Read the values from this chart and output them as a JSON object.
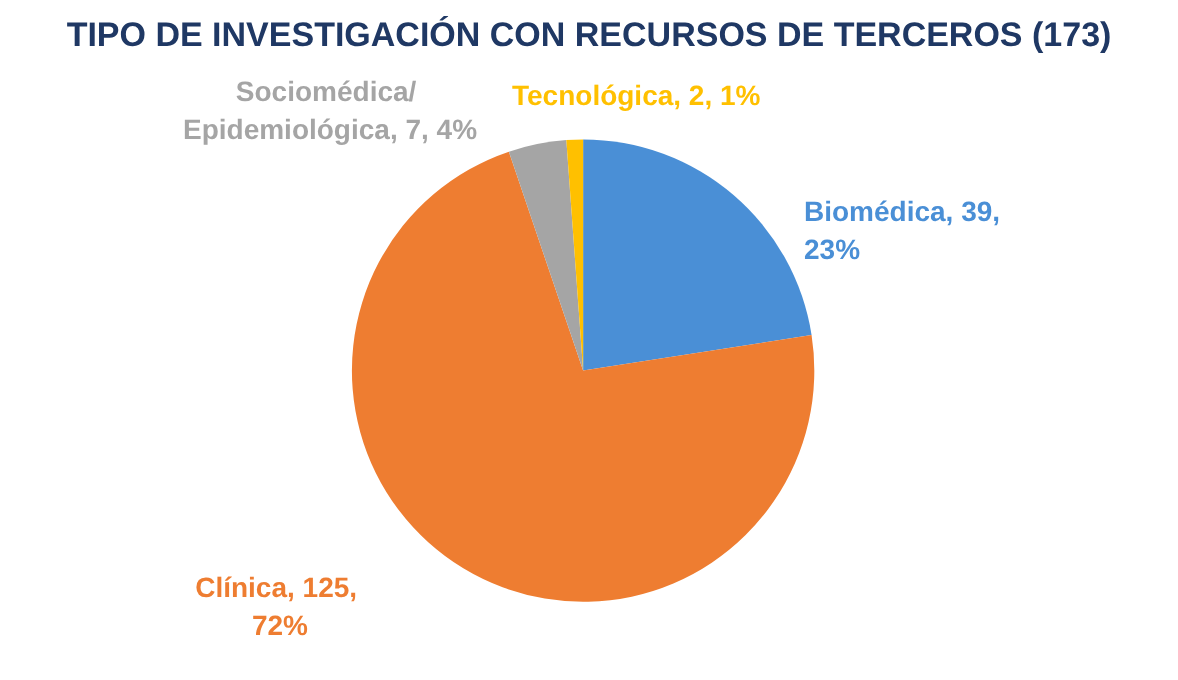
{
  "chart_data": {
    "type": "pie",
    "title": "TIPO DE INVESTIGACIÓN CON RECURSOS DE TERCEROS (173)",
    "categories": [
      "Biomédica",
      "Clínica",
      "Sociomédica/ Epidemiológica",
      "Tecnológica"
    ],
    "values": [
      39,
      125,
      7,
      2
    ],
    "colors": [
      "#4a8fd6",
      "#ee7d31",
      "#a5a5a5",
      "#ffc000"
    ],
    "value_labels": [
      "39, 23%",
      "125, 72%",
      "7, 4%",
      "2, 1%"
    ]
  }
}
